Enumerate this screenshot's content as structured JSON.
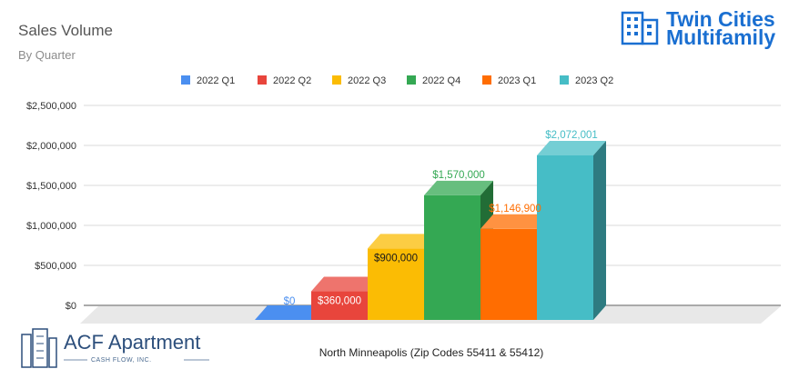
{
  "chart_data": {
    "type": "bar",
    "title": "Sales Volume",
    "subtitle": "By Quarter",
    "categories": [
      "North Minneapolis (Zip Codes 55411 & 55412)"
    ],
    "series": [
      {
        "name": "2022 Q1",
        "values": [
          0
        ],
        "color": "#4b8ff0",
        "label": "$0"
      },
      {
        "name": "2022 Q2",
        "values": [
          360000
        ],
        "color": "#e8453c",
        "label": "$360,000"
      },
      {
        "name": "2022 Q3",
        "values": [
          900000
        ],
        "color": "#fbbc04",
        "label": "$900,000"
      },
      {
        "name": "2022 Q4",
        "values": [
          1570000
        ],
        "color": "#34a853",
        "label": "$1,570,000"
      },
      {
        "name": "2023 Q1",
        "values": [
          1146900
        ],
        "color": "#ff6d01",
        "label": "$1,146,900"
      },
      {
        "name": "2023 Q2",
        "values": [
          2072001
        ],
        "color": "#46bdc6",
        "label": "$2,072,001"
      }
    ],
    "yticks": [
      "$0",
      "$500,000",
      "$1,000,000",
      "$1,500,000",
      "$2,000,000",
      "$2,500,000"
    ],
    "ylim": [
      0,
      2500000
    ],
    "grid": true,
    "legend": "top",
    "three_d": true
  },
  "logos": {
    "twin_cities": {
      "line1": "Twin Cities",
      "line2": "Multifamily"
    },
    "acf": {
      "line1": "ACF Apartment",
      "line2": "CASH FLOW, INC."
    }
  }
}
